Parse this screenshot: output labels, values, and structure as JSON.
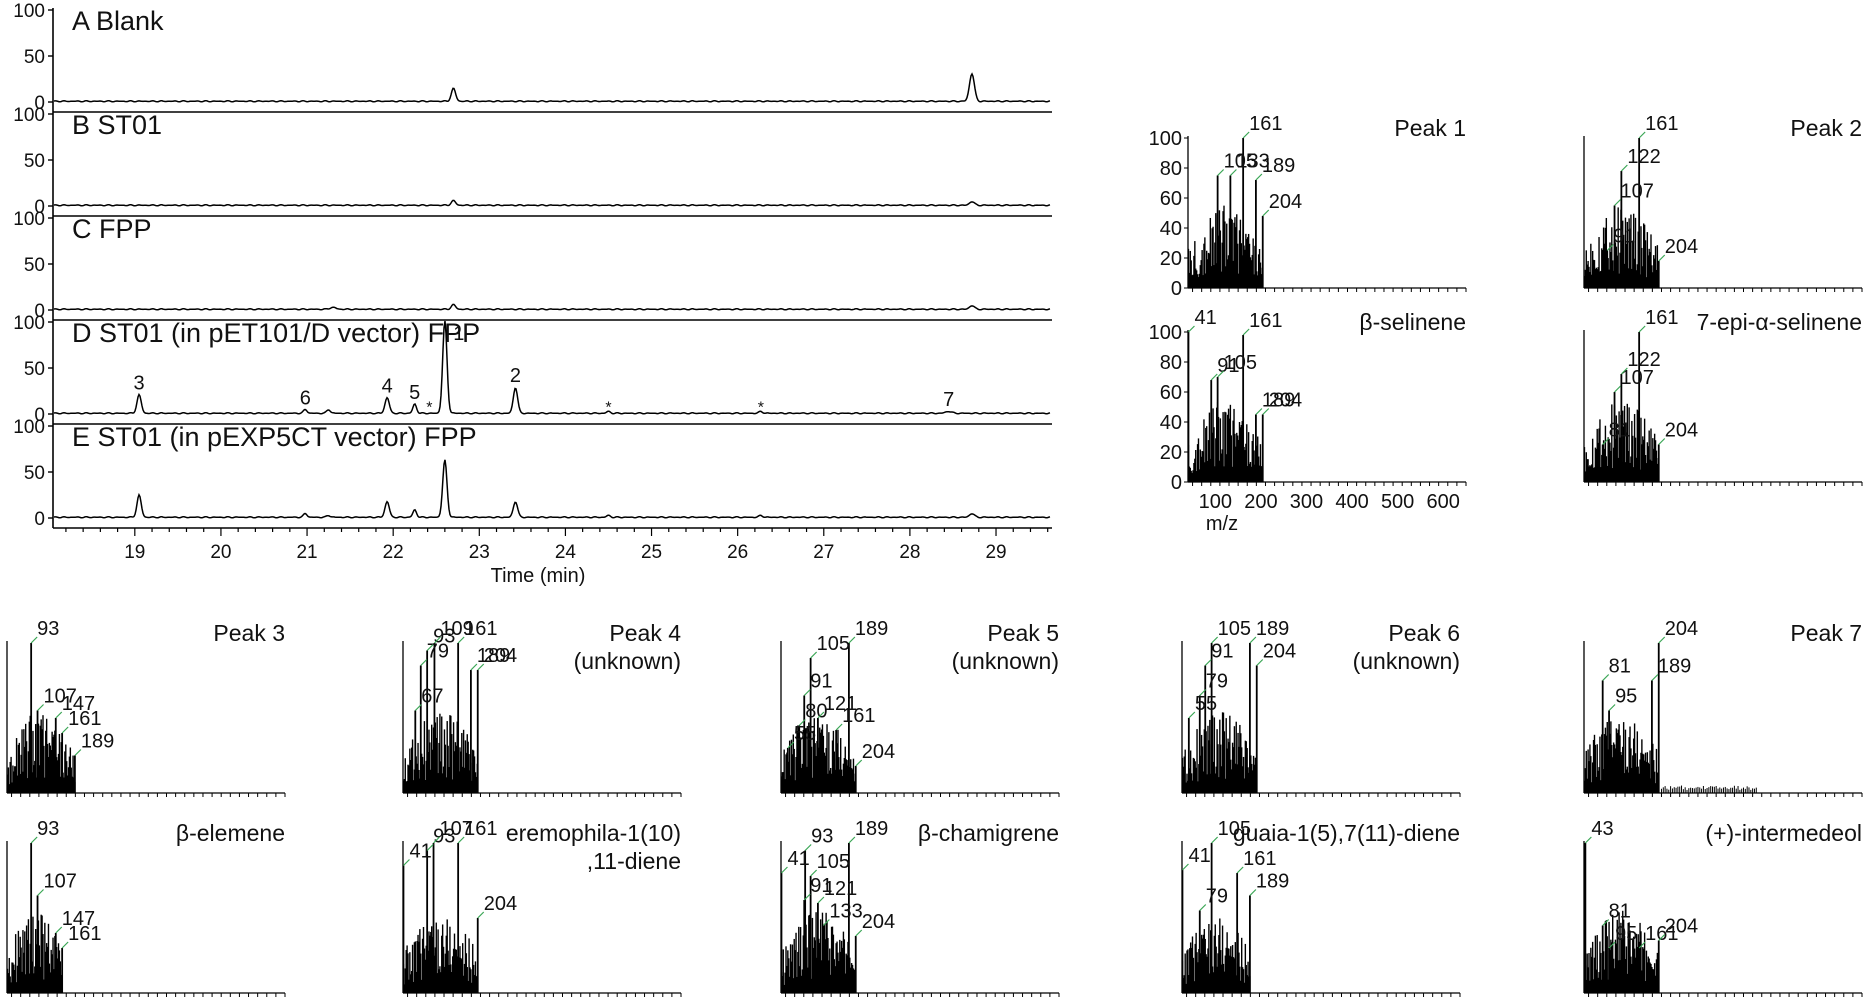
{
  "chart_data": {
    "type": "line",
    "xlabel": "Time (min)",
    "xticks": [
      19,
      20,
      21,
      22,
      23,
      24,
      25,
      26,
      27,
      28,
      29
    ],
    "xlim": [
      18.05,
      29.65
    ],
    "yticks": [
      0,
      50,
      100
    ],
    "ylim": [
      0,
      100
    ],
    "panels": [
      {
        "label": "A  Blank",
        "bumps": [
          [
            22.7,
            14,
            0.035
          ],
          [
            28.72,
            30,
            0.04
          ]
        ],
        "peaks": [],
        "stars": []
      },
      {
        "label": "B  ST01",
        "bumps": [
          [
            22.7,
            5,
            0.035
          ],
          [
            28.72,
            4,
            0.04
          ]
        ],
        "peaks": [],
        "stars": []
      },
      {
        "label": "C  FPP",
        "bumps": [
          [
            21.3,
            2,
            0.05
          ],
          [
            22.7,
            5,
            0.035
          ],
          [
            28.72,
            4,
            0.04
          ]
        ],
        "peaks": [],
        "stars": []
      },
      {
        "label": "D  ST01 (in pET101/D     vector)  FPP",
        "bumps": [
          [
            19.05,
            20,
            0.035
          ],
          [
            20.98,
            4,
            0.03
          ],
          [
            21.25,
            4,
            0.03
          ],
          [
            21.93,
            17,
            0.035
          ],
          [
            22.25,
            10,
            0.03
          ],
          [
            22.6,
            100,
            0.035
          ],
          [
            23.42,
            28,
            0.035
          ],
          [
            24.5,
            2,
            0.03
          ],
          [
            26.27,
            2,
            0.03
          ],
          [
            28.45,
            2,
            0.05
          ]
        ],
        "peaks": [
          {
            "label": "3",
            "x": 19.05,
            "y": 20
          },
          {
            "label": "6",
            "x": 20.98,
            "y": 4
          },
          {
            "label": "4",
            "x": 21.93,
            "y": 17
          },
          {
            "label": "5",
            "x": 22.25,
            "y": 10
          },
          {
            "label": "1",
            "x": 22.6,
            "y": 100
          },
          {
            "label": "2",
            "x": 23.42,
            "y": 28
          },
          {
            "label": "7",
            "x": 28.45,
            "y": 2
          }
        ],
        "stars": [
          22.42,
          24.5,
          26.27
        ]
      },
      {
        "label": "E  ST01  (in pEXP5CT vector)  FPP",
        "bumps": [
          [
            19.05,
            24,
            0.035
          ],
          [
            20.98,
            4,
            0.03
          ],
          [
            21.25,
            2,
            0.03
          ],
          [
            21.93,
            17,
            0.035
          ],
          [
            22.25,
            8,
            0.03
          ],
          [
            22.6,
            62,
            0.035
          ],
          [
            23.42,
            17,
            0.035
          ],
          [
            24.5,
            2,
            0.03
          ],
          [
            26.27,
            2,
            0.03
          ],
          [
            28.72,
            4,
            0.04
          ]
        ],
        "peaks": [],
        "stars": []
      }
    ]
  },
  "mass_spectra": {
    "xlabel": "m/z",
    "xticks": [
      100,
      200,
      300,
      400,
      500,
      600
    ],
    "yticks": [
      0,
      20,
      40,
      60,
      80,
      100
    ],
    "spectra": [
      {
        "title": "Peak 1",
        "labels": [
          {
            "mz": 105,
            "text": "105"
          },
          {
            "mz": 133,
            "text": "133"
          },
          {
            "mz": 161,
            "text": "161"
          },
          {
            "mz": 189,
            "text": "189"
          },
          {
            "mz": 204,
            "text": "204"
          }
        ],
        "main": [
          [
            105,
            75
          ],
          [
            133,
            75
          ],
          [
            161,
            100
          ],
          [
            189,
            72
          ],
          [
            204,
            48
          ]
        ]
      },
      {
        "title": "Peak 2",
        "labels": [
          {
            "mz": 91,
            "text": "91"
          },
          {
            "mz": 107,
            "text": "107"
          },
          {
            "mz": 122,
            "text": "122"
          },
          {
            "mz": 161,
            "text": "161"
          },
          {
            "mz": 204,
            "text": "204"
          }
        ],
        "main": [
          [
            91,
            25
          ],
          [
            107,
            55
          ],
          [
            122,
            78
          ],
          [
            161,
            100
          ],
          [
            204,
            18
          ]
        ]
      },
      {
        "title": "β-selinene",
        "labels": [
          {
            "mz": 41,
            "text": "41"
          },
          {
            "mz": 91,
            "text": "91"
          },
          {
            "mz": 105,
            "text": "105"
          },
          {
            "mz": 161,
            "text": "161"
          },
          {
            "mz": 189,
            "text": "189"
          },
          {
            "mz": 204,
            "text": "204"
          }
        ],
        "main": [
          [
            41,
            100
          ],
          [
            91,
            68
          ],
          [
            105,
            70
          ],
          [
            161,
            98
          ],
          [
            189,
            45
          ],
          [
            204,
            45
          ]
        ]
      },
      {
        "title": "7-epi-α-selinene",
        "labels": [
          {
            "mz": 81,
            "text": "81"
          },
          {
            "mz": 107,
            "text": "107"
          },
          {
            "mz": 122,
            "text": "122"
          },
          {
            "mz": 161,
            "text": "161"
          },
          {
            "mz": 204,
            "text": "204"
          }
        ],
        "main": [
          [
            81,
            25
          ],
          [
            107,
            60
          ],
          [
            122,
            72
          ],
          [
            161,
            100
          ],
          [
            204,
            25
          ]
        ]
      },
      {
        "title": "Peak 3",
        "labels": [
          {
            "mz": 93,
            "text": "93"
          },
          {
            "mz": 107,
            "text": "107"
          },
          {
            "mz": 147,
            "text": "147"
          },
          {
            "mz": 161,
            "text": "161"
          },
          {
            "mz": 189,
            "text": "189"
          }
        ],
        "main": [
          [
            93,
            100
          ],
          [
            107,
            55
          ],
          [
            147,
            50
          ],
          [
            161,
            40
          ],
          [
            189,
            25
          ]
        ]
      },
      {
        "title": "Peak 4",
        "subtitle": "(unknown)",
        "labels": [
          {
            "mz": 67,
            "text": "67"
          },
          {
            "mz": 79,
            "text": "79"
          },
          {
            "mz": 93,
            "text": "93"
          },
          {
            "mz": 109,
            "text": "109"
          },
          {
            "mz": 161,
            "text": "161"
          },
          {
            "mz": 189,
            "text": "189"
          },
          {
            "mz": 204,
            "text": "204"
          }
        ],
        "main": [
          [
            67,
            55
          ],
          [
            79,
            85
          ],
          [
            93,
            95
          ],
          [
            109,
            100
          ],
          [
            161,
            100
          ],
          [
            189,
            82
          ],
          [
            204,
            82
          ]
        ]
      },
      {
        "title": "Peak 5",
        "subtitle": "(unknown)",
        "labels": [
          {
            "mz": 55,
            "text": "55"
          },
          {
            "mz": 80,
            "text": "80"
          },
          {
            "mz": 91,
            "text": "91"
          },
          {
            "mz": 105,
            "text": "105"
          },
          {
            "mz": 121,
            "text": "121"
          },
          {
            "mz": 161,
            "text": "161"
          },
          {
            "mz": 189,
            "text": "189"
          },
          {
            "mz": 204,
            "text": "204"
          }
        ],
        "main": [
          [
            55,
            30
          ],
          [
            80,
            45
          ],
          [
            91,
            65
          ],
          [
            105,
            90
          ],
          [
            121,
            50
          ],
          [
            161,
            42
          ],
          [
            189,
            100
          ],
          [
            204,
            18
          ]
        ]
      },
      {
        "title": "Peak 6",
        "subtitle": "(unknown)",
        "labels": [
          {
            "mz": 55,
            "text": "55"
          },
          {
            "mz": 79,
            "text": "79"
          },
          {
            "mz": 91,
            "text": "91"
          },
          {
            "mz": 105,
            "text": "105"
          },
          {
            "mz": 189,
            "text": "189"
          },
          {
            "mz": 204,
            "text": "204"
          }
        ],
        "main": [
          [
            55,
            50
          ],
          [
            79,
            65
          ],
          [
            91,
            85
          ],
          [
            105,
            100
          ],
          [
            189,
            100
          ],
          [
            204,
            85
          ]
        ]
      },
      {
        "title": "Peak 7",
        "labels": [
          {
            "mz": 81,
            "text": "81"
          },
          {
            "mz": 95,
            "text": "95"
          },
          {
            "mz": 189,
            "text": "189"
          },
          {
            "mz": 204,
            "text": "204"
          }
        ],
        "main": [
          [
            81,
            75
          ],
          [
            95,
            55
          ],
          [
            189,
            75
          ],
          [
            204,
            100
          ]
        ]
      },
      {
        "title": "β-elemene",
        "labels": [
          {
            "mz": 93,
            "text": "93"
          },
          {
            "mz": 107,
            "text": "107"
          },
          {
            "mz": 147,
            "text": "147"
          },
          {
            "mz": 161,
            "text": "161"
          }
        ],
        "main": [
          [
            93,
            100
          ],
          [
            107,
            65
          ],
          [
            147,
            40
          ],
          [
            161,
            30
          ]
        ]
      },
      {
        "title": "eremophila-1(10)",
        "subtitle": ",11-diene",
        "labels": [
          {
            "mz": 41,
            "text": "41"
          },
          {
            "mz": 93,
            "text": "93"
          },
          {
            "mz": 107,
            "text": "107"
          },
          {
            "mz": 161,
            "text": "161"
          },
          {
            "mz": 204,
            "text": "204"
          }
        ],
        "main": [
          [
            41,
            85
          ],
          [
            93,
            95
          ],
          [
            107,
            100
          ],
          [
            161,
            100
          ],
          [
            204,
            50
          ]
        ]
      },
      {
        "title": "β-chamigrene",
        "labels": [
          {
            "mz": 41,
            "text": "41"
          },
          {
            "mz": 91,
            "text": "91"
          },
          {
            "mz": 93,
            "text": "93"
          },
          {
            "mz": 105,
            "text": "105"
          },
          {
            "mz": 121,
            "text": "121"
          },
          {
            "mz": 133,
            "text": "133"
          },
          {
            "mz": 189,
            "text": "189"
          },
          {
            "mz": 204,
            "text": "204"
          }
        ],
        "main": [
          [
            41,
            80
          ],
          [
            91,
            62
          ],
          [
            93,
            95
          ],
          [
            105,
            78
          ],
          [
            121,
            60
          ],
          [
            133,
            45
          ],
          [
            189,
            100
          ],
          [
            204,
            38
          ]
        ]
      },
      {
        "title": "guaia-1(5),7(11)-diene",
        "labels": [
          {
            "mz": 41,
            "text": "41"
          },
          {
            "mz": 79,
            "text": "79"
          },
          {
            "mz": 105,
            "text": "105"
          },
          {
            "mz": 161,
            "text": "161"
          },
          {
            "mz": 189,
            "text": "189"
          }
        ],
        "main": [
          [
            41,
            82
          ],
          [
            79,
            55
          ],
          [
            105,
            100
          ],
          [
            161,
            80
          ],
          [
            189,
            65
          ]
        ]
      },
      {
        "title": "(+)-intermedeol",
        "labels": [
          {
            "mz": 43,
            "text": "43"
          },
          {
            "mz": 81,
            "text": "81"
          },
          {
            "mz": 95,
            "text": "95"
          },
          {
            "mz": 161,
            "text": "161"
          },
          {
            "mz": 204,
            "text": "204"
          }
        ],
        "main": [
          [
            43,
            100
          ],
          [
            81,
            45
          ],
          [
            95,
            30
          ],
          [
            161,
            30
          ],
          [
            204,
            35
          ]
        ]
      }
    ]
  }
}
